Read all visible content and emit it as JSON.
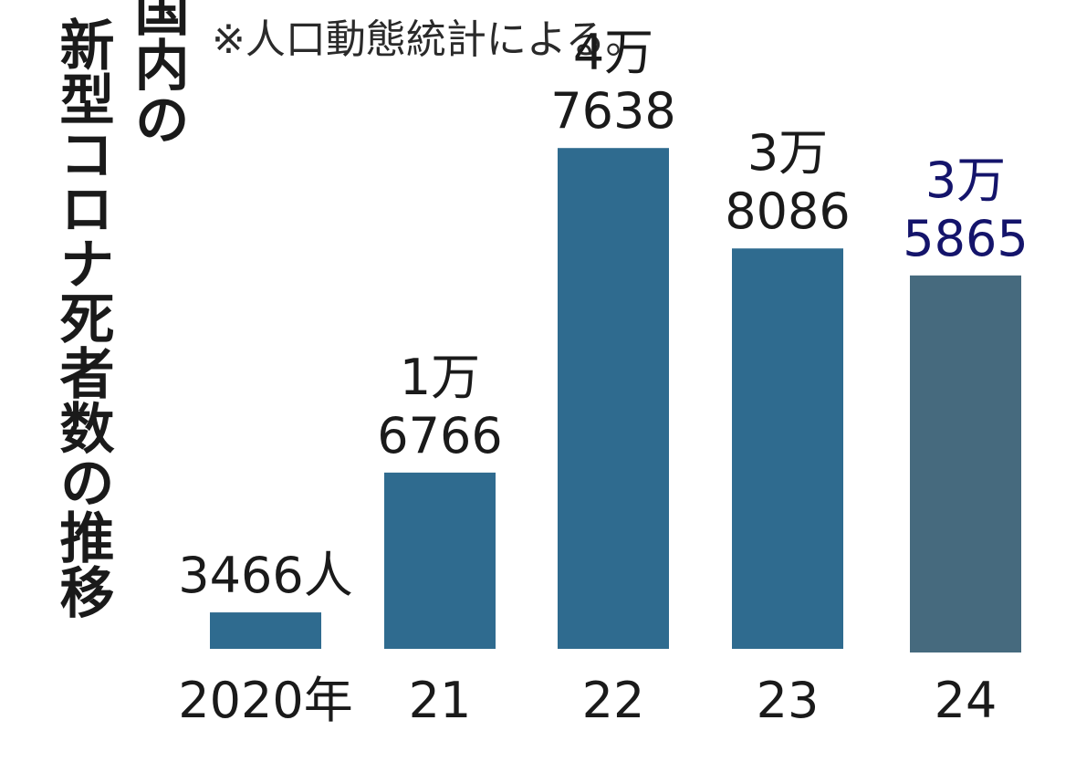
{
  "title_lines": [
    "国内の",
    "新型コロナ死者数の推移"
  ],
  "note": "※人口動態統計による。",
  "chart_data": {
    "type": "bar",
    "categories": [
      "2020年",
      "21",
      "22",
      "23",
      "24"
    ],
    "values": [
      3466,
      16766,
      47638,
      38086,
      35865
    ],
    "value_labels": [
      [
        "3466人"
      ],
      [
        "1万",
        "6766"
      ],
      [
        "4万",
        "7638"
      ],
      [
        "3万",
        "8086"
      ],
      [
        "3万",
        "5865"
      ]
    ],
    "colors": [
      "#2f6b8f",
      "#2f6b8f",
      "#2f6b8f",
      "#2f6b8f",
      "#466a7e"
    ],
    "label_colors": [
      "#1a1a1a",
      "#1a1a1a",
      "#1a1a1a",
      "#1a1a1a",
      "#14146b"
    ],
    "ylim": [
      0,
      50000
    ],
    "grid": false
  }
}
